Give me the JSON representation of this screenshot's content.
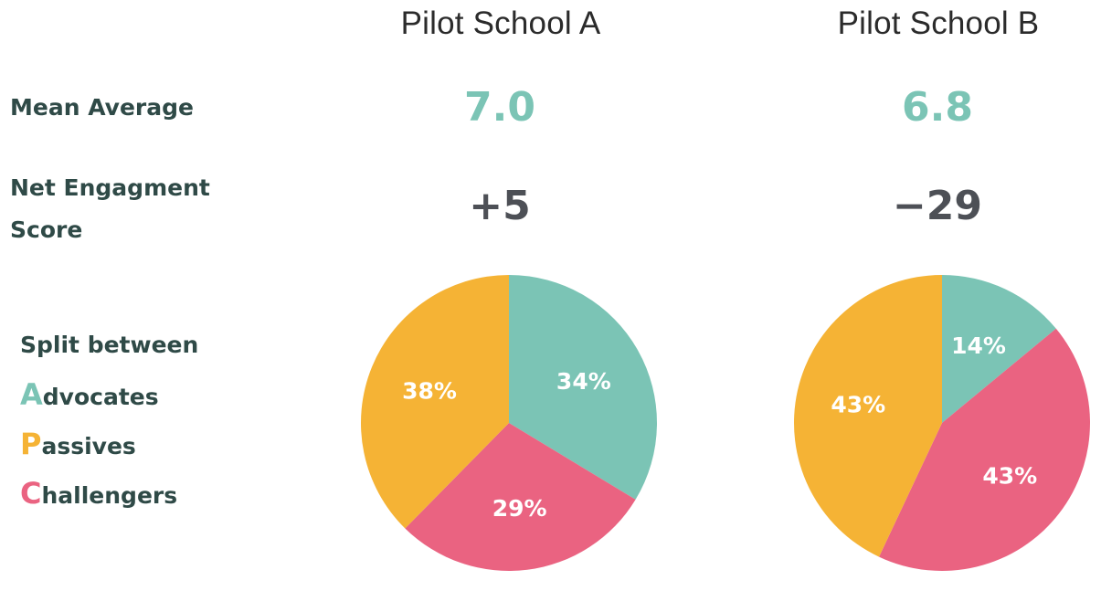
{
  "schools": {
    "a": {
      "title": "Pilot School A",
      "mean": "7.0",
      "net": "+5"
    },
    "b": {
      "title": "Pilot School B",
      "mean": "6.8",
      "net": "−29"
    }
  },
  "rows": {
    "mean_label": "Mean Average",
    "net_label_line1": "Net Engagment",
    "net_label_line2": "Score"
  },
  "legend": {
    "heading": "Split between",
    "items": [
      {
        "initial": "A",
        "rest": "dvocates",
        "color": "#7bc4b5"
      },
      {
        "initial": "P",
        "rest": "assives",
        "color": "#f5b335"
      },
      {
        "initial": "C",
        "rest": "hallengers",
        "color": "#ea6381"
      }
    ]
  },
  "colors": {
    "mean_value": "#7bc4b5",
    "net_value": "#4d5056"
  },
  "chart_data": [
    {
      "type": "pie",
      "title": "Pilot School A",
      "categories": [
        "Advocates",
        "Challengers",
        "Passives"
      ],
      "values": [
        34,
        29,
        38
      ],
      "labels": [
        "34%",
        "29%",
        "38%"
      ],
      "colors": [
        "#7bc4b5",
        "#ea6381",
        "#f5b335"
      ]
    },
    {
      "type": "pie",
      "title": "Pilot School B",
      "categories": [
        "Advocates",
        "Challengers",
        "Passives"
      ],
      "values": [
        14,
        43,
        43
      ],
      "labels": [
        "14%",
        "43%",
        "43%"
      ],
      "colors": [
        "#7bc4b5",
        "#ea6381",
        "#f5b335"
      ]
    }
  ]
}
